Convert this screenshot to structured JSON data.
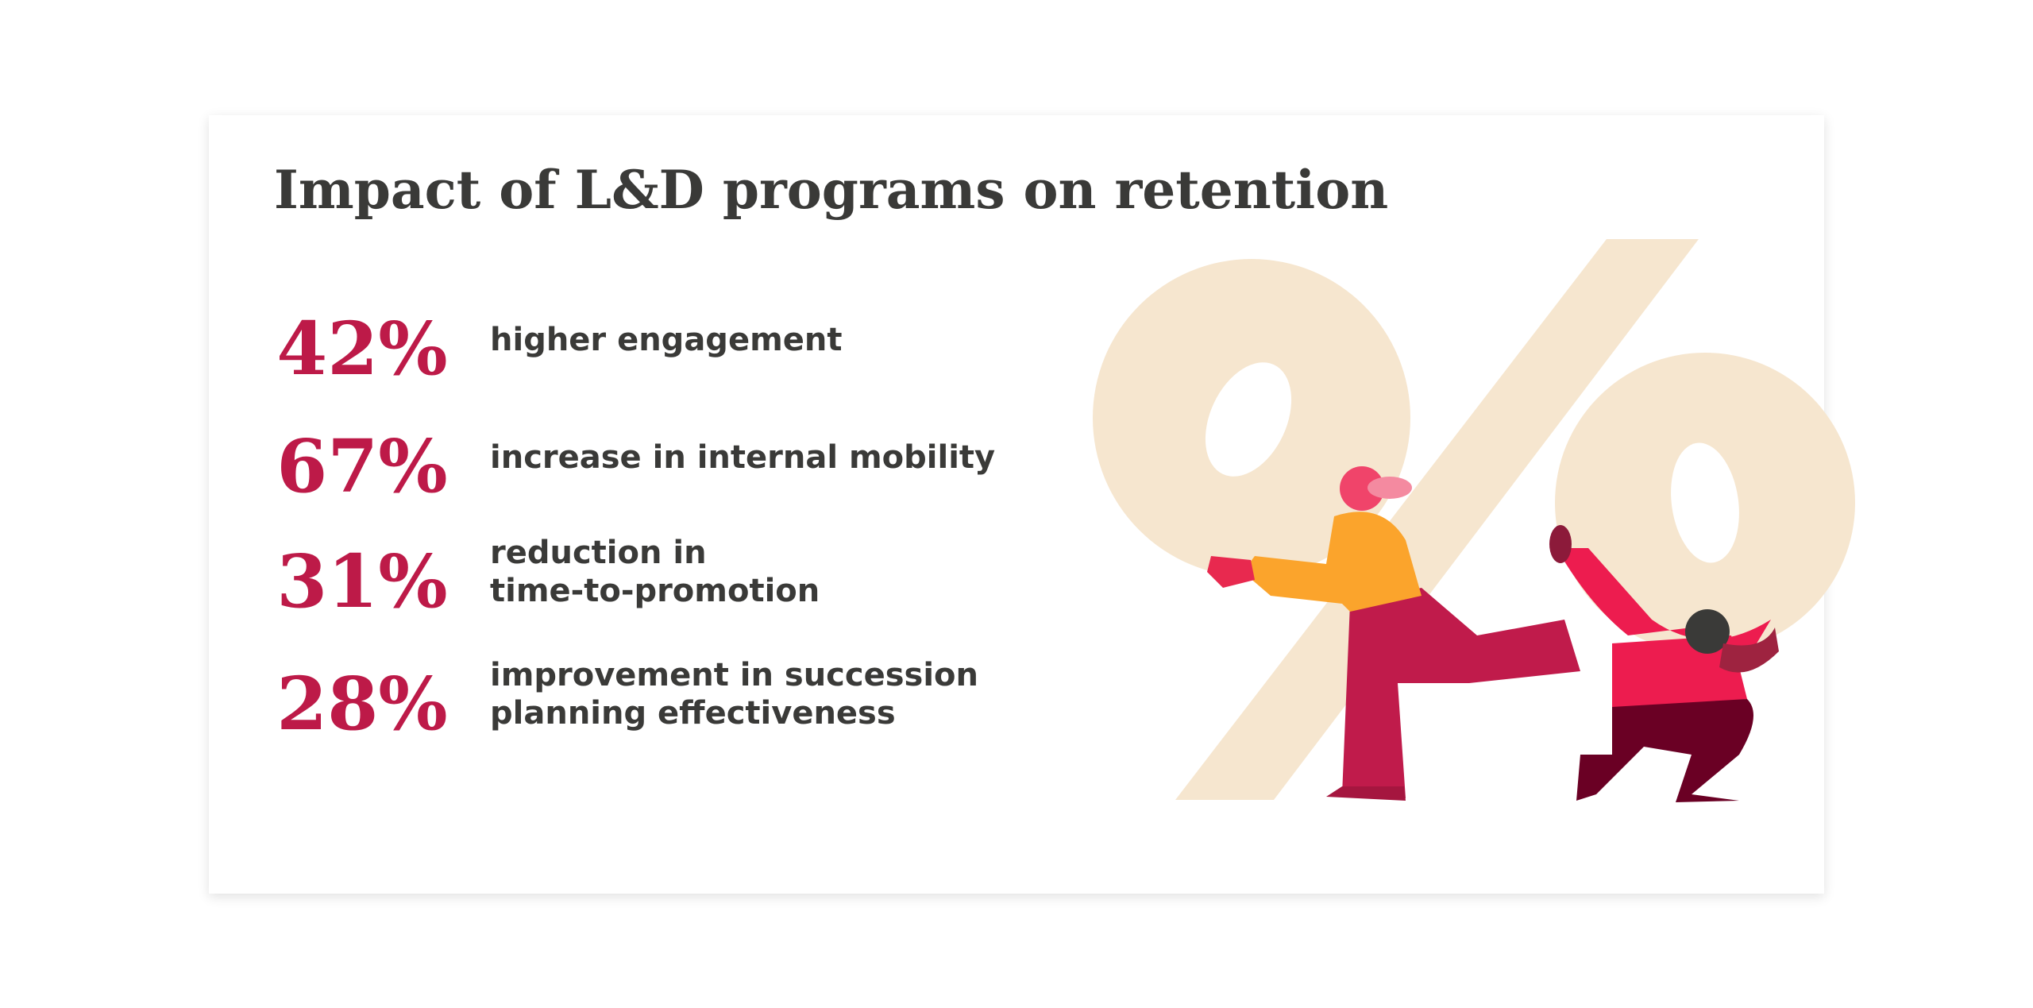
{
  "header": {
    "title": "Impact of L&D programs on retention"
  },
  "stats": [
    {
      "value": "42%",
      "label": [
        "higher engagement"
      ]
    },
    {
      "value": "67%",
      "label": [
        "increase in internal mobility"
      ]
    },
    {
      "value": "31%",
      "label": [
        "reduction in",
        "time-to-promotion"
      ]
    },
    {
      "value": "28%",
      "label": [
        "improvement in succession",
        "planning effectiveness"
      ]
    }
  ]
}
